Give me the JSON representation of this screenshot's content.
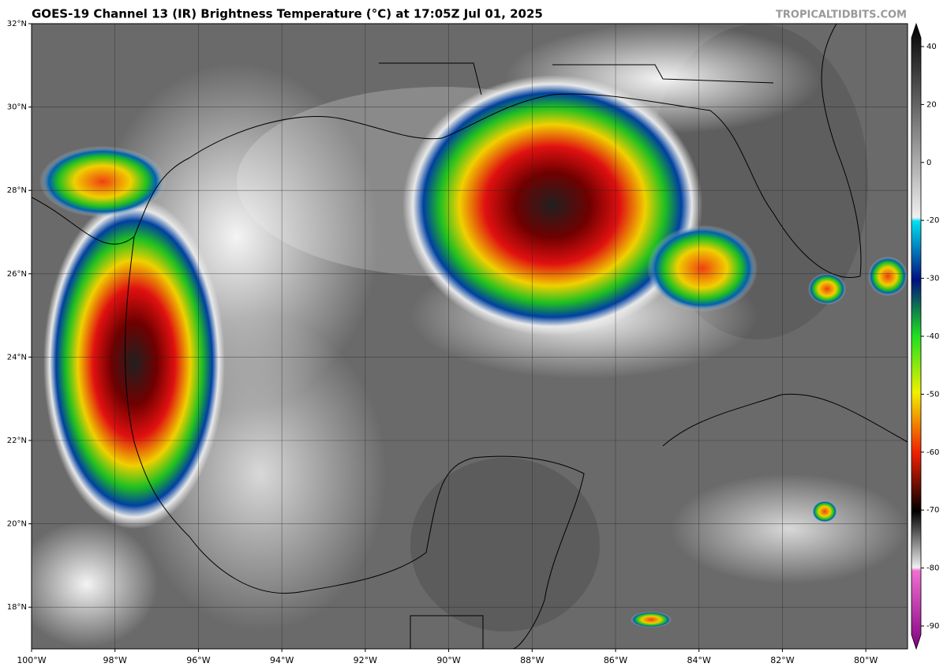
{
  "title": "GOES-19 Channel 13 (IR) Brightness Temperature (°C) at 17:05Z Jul 01, 2025",
  "watermark": "TROPICALTIDBITS.COM",
  "map": {
    "xlim": [
      -100,
      -79
    ],
    "ylim": [
      17,
      32
    ],
    "xticks": [
      {
        "value": -100,
        "label": "100°W"
      },
      {
        "value": -98,
        "label": "98°W"
      },
      {
        "value": -96,
        "label": "96°W"
      },
      {
        "value": -94,
        "label": "94°W"
      },
      {
        "value": -92,
        "label": "92°W"
      },
      {
        "value": -90,
        "label": "90°W"
      },
      {
        "value": -88,
        "label": "88°W"
      },
      {
        "value": -86,
        "label": "86°W"
      },
      {
        "value": -84,
        "label": "84°W"
      },
      {
        "value": -82,
        "label": "82°W"
      },
      {
        "value": -80,
        "label": "80°W"
      }
    ],
    "yticks": [
      {
        "value": 18,
        "label": "18°N"
      },
      {
        "value": 20,
        "label": "20°N"
      },
      {
        "value": 22,
        "label": "22°N"
      },
      {
        "value": 24,
        "label": "24°N"
      },
      {
        "value": 26,
        "label": "26°N"
      },
      {
        "value": 28,
        "label": "28°N"
      },
      {
        "value": 30,
        "label": "30°N"
      },
      {
        "value": 32,
        "label": "32°N"
      }
    ]
  },
  "colorbar": {
    "ticks": [
      40,
      20,
      0,
      -20,
      -30,
      -40,
      -50,
      -60,
      -70,
      -80,
      -90
    ]
  }
}
